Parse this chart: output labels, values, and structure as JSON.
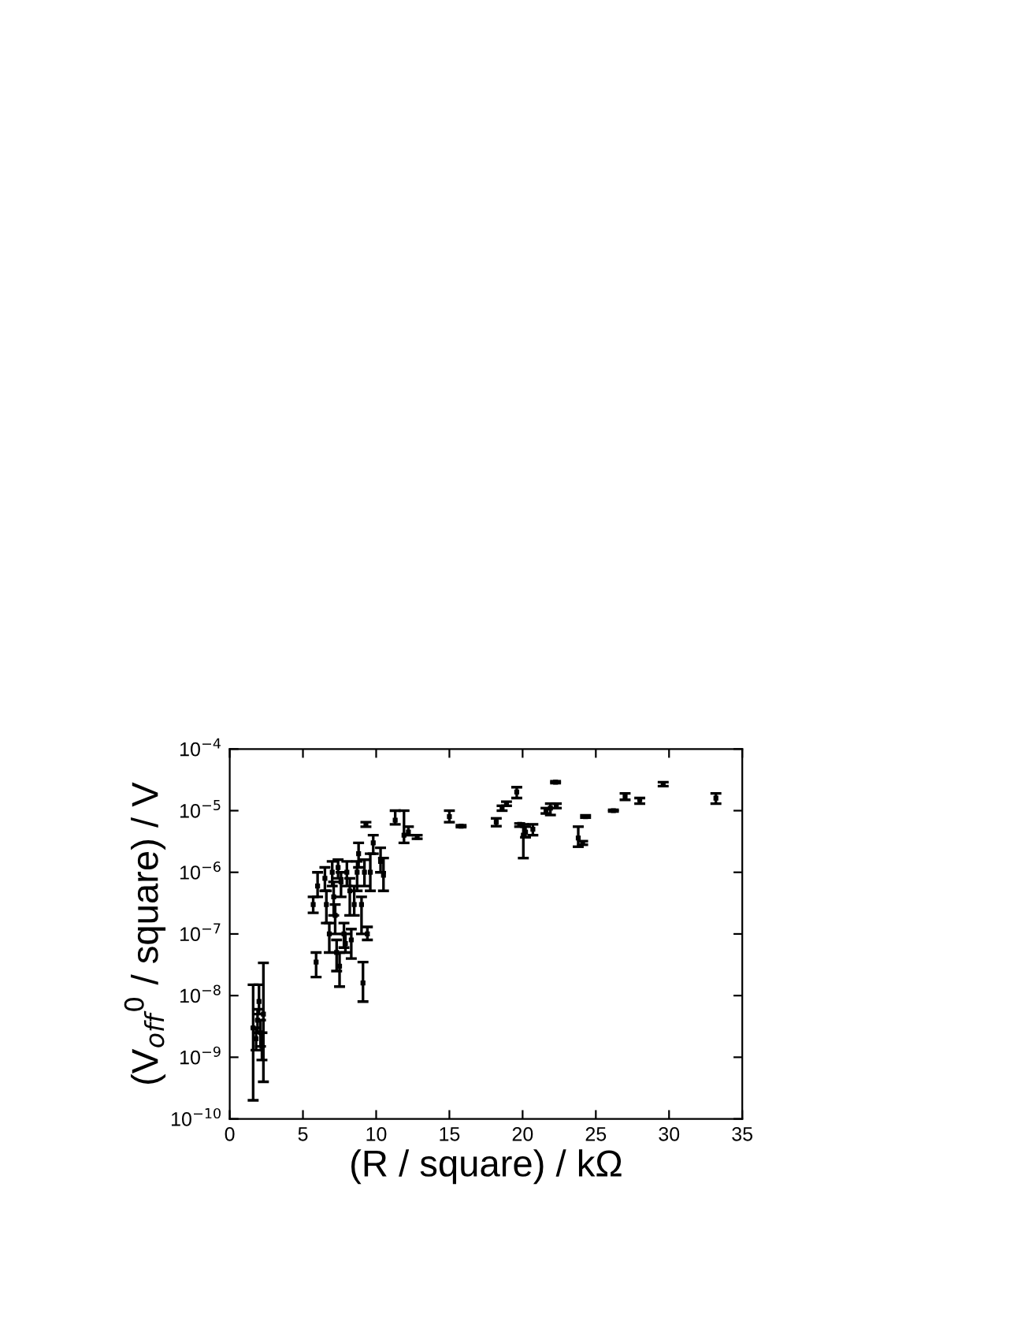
{
  "chart_data": {
    "type": "scatter",
    "xlabel": "(R / square) / kΩ",
    "ylabel": "(V$_{off}$$^{0}$ / square) / V",
    "log": "y",
    "grid": false,
    "marker": "square",
    "xlim": [
      0,
      35
    ],
    "xticks": [
      0,
      5,
      10,
      15,
      20,
      25,
      30,
      35
    ],
    "ylim": [
      1e-10,
      0.0001
    ],
    "yticks": [
      {
        "value": 1e-10,
        "label": "10$^{−10}$"
      },
      {
        "value": 1e-09,
        "label": "10$^{−9}$"
      },
      {
        "value": 1e-08,
        "label": "10$^{−8}$"
      },
      {
        "value": 1e-07,
        "label": "10$^{−7}$"
      },
      {
        "value": 1e-06,
        "label": "10$^{−6}$"
      },
      {
        "value": 1e-05,
        "label": "10$^{−5}$"
      },
      {
        "value": 0.0001,
        "label": "10$^{−4}$"
      }
    ],
    "series": [
      {
        "color": "#000000",
        "x": [
          1.6,
          2.3,
          1.8,
          2.0,
          2.1,
          1.9,
          2.2,
          5.7,
          6.0,
          5.9,
          6.5,
          6.6,
          6.8,
          7.0,
          7.1,
          7.2,
          7.3,
          7.5,
          7.4,
          7.6,
          7.8,
          7.9,
          8.0,
          8.2,
          8.3,
          8.5,
          8.7,
          8.8,
          9.0,
          9.1,
          9.3,
          9.4,
          9.2,
          9.6,
          9.8,
          10.3,
          10.5,
          11.3,
          11.9,
          12.2,
          12.8,
          15.0,
          15.8,
          18.2,
          18.6,
          18.9,
          19.6,
          19.8,
          20.05,
          20.2,
          20.7,
          21.6,
          21.9,
          22.25,
          22.3,
          23.8,
          24.1,
          24.3,
          26.2,
          27.0,
          28.0,
          29.6,
          33.2
        ],
        "values": [
          3e-09,
          5e-09,
          2e-09,
          8e-09,
          2.5e-09,
          4e-09,
          1.5e-09,
          3e-07,
          6e-07,
          3.5e-08,
          8e-07,
          3e-07,
          1e-07,
          1e-06,
          4e-07,
          2e-07,
          5e-08,
          3e-08,
          1.2e-06,
          7e-07,
          1e-07,
          7e-08,
          1e-06,
          5e-07,
          8e-08,
          3e-07,
          1e-06,
          2e-06,
          3e-07,
          1.6e-08,
          6e-06,
          1e-07,
          1e-06,
          1e-06,
          3e-06,
          1.5e-06,
          9e-07,
          7e-06,
          4e-06,
          4.5e-06,
          3.7e-06,
          8e-06,
          5.6e-06,
          6.5e-06,
          1.1e-05,
          1.3e-05,
          2e-05,
          6e-06,
          4e-06,
          4.5e-06,
          5e-06,
          1e-05,
          1.1e-05,
          2.9e-05,
          1.2e-05,
          3.6e-06,
          3e-06,
          8e-06,
          1e-05,
          1.7e-05,
          1.5e-05,
          2.7e-05,
          1.6e-05
        ],
        "errors": [
          [
            2e-10,
            1.5e-08
          ],
          [
            4e-10,
            3.4e-08
          ],
          [
            1.3e-09,
            3e-09
          ],
          [
            5e-09,
            1.5e-08
          ],
          [
            1.5e-09,
            4e-09
          ],
          [
            2.5e-09,
            6e-09
          ],
          [
            9e-10,
            2.5e-09
          ],
          [
            2.2e-07,
            4e-07
          ],
          [
            4e-07,
            1e-06
          ],
          [
            2e-08,
            5e-08
          ],
          [
            5e-07,
            1.2e-06
          ],
          [
            1.5e-07,
            5e-07
          ],
          [
            5e-08,
            1.5e-07
          ],
          [
            6e-07,
            1.5e-06
          ],
          [
            2e-07,
            7e-07
          ],
          [
            1e-07,
            3e-07
          ],
          [
            2.5e-08,
            8e-08
          ],
          [
            1.4e-08,
            5e-08
          ],
          [
            8e-07,
            1.6e-06
          ],
          [
            4e-07,
            1e-06
          ],
          [
            6e-08,
            1.5e-07
          ],
          [
            5e-08,
            1e-07
          ],
          [
            6e-07,
            1.5e-06
          ],
          [
            2e-07,
            8e-07
          ],
          [
            4e-08,
            1.2e-07
          ],
          [
            2e-07,
            6e-07
          ],
          [
            5e-07,
            1.5e-06
          ],
          [
            1.2e-06,
            3e-06
          ],
          [
            1e-07,
            4e-07
          ],
          [
            8e-09,
            3.5e-08
          ],
          [
            5.5e-06,
            6.5e-06
          ],
          [
            8e-08,
            1.3e-07
          ],
          [
            6e-07,
            1.6e-06
          ],
          [
            5e-07,
            2e-06
          ],
          [
            2e-06,
            4e-06
          ],
          [
            1e-06,
            2.5e-06
          ],
          [
            5e-07,
            1.7e-06
          ],
          [
            6e-06,
            1e-05
          ],
          [
            3e-06,
            1e-05
          ],
          [
            4e-06,
            5.5e-06
          ],
          [
            3.5e-06,
            4e-06
          ],
          [
            6.5e-06,
            1e-05
          ],
          [
            5.4e-06,
            5.8e-06
          ],
          [
            5.6e-06,
            7.5e-06
          ],
          [
            1e-05,
            1.2e-05
          ],
          [
            1.2e-05,
            1.4e-05
          ],
          [
            1.6e-05,
            2.4e-05
          ],
          [
            5.5e-06,
            6.2e-06
          ],
          [
            1.7e-06,
            6e-06
          ],
          [
            3.7e-06,
            5.5e-06
          ],
          [
            4e-06,
            6e-06
          ],
          [
            9e-06,
            1.1e-05
          ],
          [
            8.5e-06,
            1.3e-05
          ],
          [
            2.8e-05,
            3e-05
          ],
          [
            1.1e-05,
            1.3e-05
          ],
          [
            2.6e-06,
            5.5e-06
          ],
          [
            2.8e-06,
            3.2e-06
          ],
          [
            7.7e-06,
            8.4e-06
          ],
          [
            9.7e-06,
            1.03e-05
          ],
          [
            1.5e-05,
            1.9e-05
          ],
          [
            1.3e-05,
            1.6e-05
          ],
          [
            2.5e-05,
            2.9e-05
          ],
          [
            1.3e-05,
            1.9e-05
          ]
        ]
      }
    ]
  }
}
